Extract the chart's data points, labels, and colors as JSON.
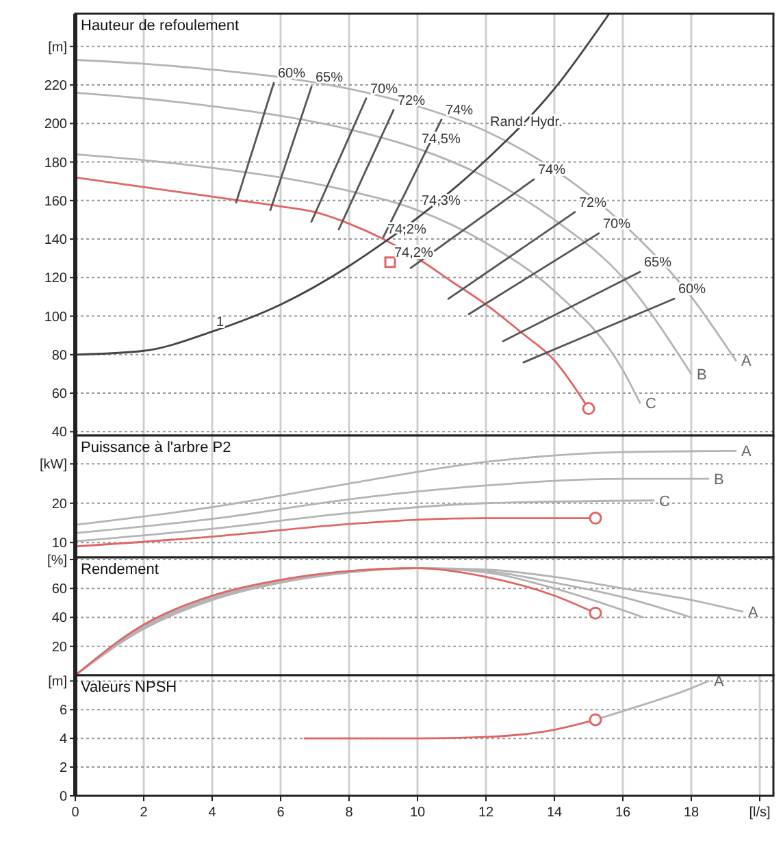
{
  "chart_data": [
    {
      "type": "line",
      "title": "Hauteur de refoulement",
      "xlim": [
        0,
        20.4
      ],
      "xticks": [
        0,
        2,
        4,
        6,
        8,
        10,
        12,
        14,
        16,
        18
      ],
      "ylim": [
        38,
        257
      ],
      "yticks": [
        40,
        60,
        80,
        100,
        120,
        140,
        160,
        180,
        200,
        220,
        {
          "value": 240,
          "label": "[m]"
        }
      ],
      "tick_labels": "y",
      "grid": true,
      "series": [
        {
          "name": "A",
          "color": "#b4b4b4",
          "x": [
            0,
            2,
            4,
            6,
            8,
            10,
            12,
            14,
            16,
            18,
            19.3
          ],
          "values": [
            233,
            231,
            228,
            224,
            218,
            209,
            196,
            176,
            148,
            110,
            77
          ]
        },
        {
          "name": "B",
          "color": "#b4b4b4",
          "x": [
            0,
            2,
            4,
            6,
            8,
            10,
            12,
            14,
            16,
            18
          ],
          "values": [
            216,
            213,
            209,
            204,
            197,
            187,
            172,
            150,
            120,
            70
          ]
        },
        {
          "name": "C",
          "color": "#b4b4b4",
          "x": [
            0,
            2,
            4,
            6,
            8,
            10,
            12,
            14,
            16,
            16.5
          ],
          "values": [
            184,
            181,
            177,
            172,
            165,
            155,
            138,
            113,
            72,
            55
          ]
        },
        {
          "color": "#e06666",
          "x": [
            0,
            2,
            4,
            6,
            7,
            8,
            9,
            10,
            11,
            12,
            13,
            14,
            15
          ],
          "values": [
            172,
            167,
            162,
            157,
            154,
            148,
            140,
            130,
            118,
            106,
            92,
            77,
            52
          ]
        },
        {
          "type": "scatter",
          "marker": "circle",
          "color": "#e06666",
          "x": [
            15
          ],
          "values": [
            52
          ]
        },
        {
          "type": "scatter",
          "marker": "square",
          "color": "#e06666",
          "x": [
            9.2
          ],
          "values": [
            128
          ]
        },
        {
          "color": "#444444",
          "x": [
            0,
            2,
            4,
            6,
            8,
            9,
            10,
            12,
            14,
            15.6
          ],
          "values": [
            80,
            82,
            92,
            106,
            126,
            138,
            151,
            181,
            218,
            257
          ]
        },
        {
          "color": "#555555",
          "x": [
            5.8,
            4.7
          ],
          "values": [
            221,
            159
          ]
        },
        {
          "color": "#555555",
          "x": [
            6.9,
            5.7
          ],
          "values": [
            219,
            155
          ]
        },
        {
          "color": "#555555",
          "x": [
            8.5,
            6.9
          ],
          "values": [
            213,
            149
          ]
        },
        {
          "color": "#555555",
          "x": [
            9.3,
            7.7
          ],
          "values": [
            207,
            145
          ]
        },
        {
          "color": "#555555",
          "x": [
            10.7,
            9.0
          ],
          "values": [
            202,
            141
          ]
        },
        {
          "color": "#555555",
          "x": [
            13.4,
            9.8
          ],
          "values": [
            171,
            125
          ]
        },
        {
          "color": "#555555",
          "x": [
            14.6,
            10.9
          ],
          "values": [
            154,
            109
          ]
        },
        {
          "color": "#555555",
          "x": [
            15.3,
            11.5
          ],
          "values": [
            143,
            101
          ]
        },
        {
          "color": "#555555",
          "x": [
            16.5,
            12.5
          ],
          "values": [
            123,
            87
          ]
        },
        {
          "color": "#555555",
          "x": [
            17.5,
            13.1
          ],
          "values": [
            109,
            76
          ]
        }
      ],
      "annotations": [
        {
          "text": "60%",
          "x": 5.8,
          "y": 221
        },
        {
          "text": "65%",
          "x": 6.9,
          "y": 219
        },
        {
          "text": "70%",
          "x": 8.5,
          "y": 213
        },
        {
          "text": "72%",
          "x": 9.3,
          "y": 207
        },
        {
          "text": "74%",
          "x": 10.7,
          "y": 202
        },
        {
          "text": "Rand. Hydr.",
          "x": 12,
          "y": 196
        },
        {
          "text": "74,5%",
          "x": 10,
          "y": 187
        },
        {
          "text": "74%",
          "x": 13.4,
          "y": 171
        },
        {
          "text": "74,3%",
          "x": 10,
          "y": 155
        },
        {
          "text": "72%",
          "x": 14.6,
          "y": 154
        },
        {
          "text": "70%",
          "x": 15.3,
          "y": 143
        },
        {
          "text": "74,2%",
          "x": 9,
          "y": 140
        },
        {
          "text": "65%",
          "x": 16.5,
          "y": 123
        },
        {
          "text": "74,2%",
          "x": 9.2,
          "y": 128
        },
        {
          "text": "60%",
          "x": 17.5,
          "y": 109
        },
        {
          "text": "1",
          "x": 4,
          "y": 92
        }
      ]
    },
    {
      "type": "line",
      "title": "Puissance à l'arbre P2",
      "xlim": [
        0,
        20.4
      ],
      "xticks": [
        0,
        2,
        4,
        6,
        8,
        10,
        12,
        14,
        16,
        18
      ],
      "ylim": [
        6.2,
        37.2
      ],
      "yticks": [
        10,
        20,
        {
          "value": 30,
          "label": "[kW]"
        }
      ],
      "tick_labels": "y",
      "grid": true,
      "series": [
        {
          "name": "A",
          "color": "#b4b4b4",
          "x": [
            0,
            4,
            8,
            12,
            16,
            19.3
          ],
          "values": [
            14.5,
            19,
            25,
            30.5,
            33,
            33.3
          ]
        },
        {
          "name": "B",
          "color": "#b4b4b4",
          "x": [
            0,
            4,
            8,
            12,
            16,
            18.5
          ],
          "values": [
            12.4,
            16,
            21,
            24.5,
            26.2,
            26.2
          ]
        },
        {
          "name": "C",
          "color": "#b4b4b4",
          "x": [
            0,
            4,
            8,
            12,
            16.9
          ],
          "values": [
            10.3,
            13.5,
            17.5,
            20,
            20.7
          ]
        },
        {
          "color": "#e06666",
          "x": [
            0,
            4,
            8,
            10,
            12,
            15.2
          ],
          "values": [
            9,
            11.5,
            14.7,
            15.8,
            16.2,
            16.2
          ]
        },
        {
          "type": "scatter",
          "marker": "circle",
          "color": "#e06666",
          "x": [
            15.2
          ],
          "values": [
            16.2
          ]
        }
      ]
    },
    {
      "type": "line",
      "title": "Rendement",
      "xlim": [
        0,
        20.4
      ],
      "xticks": [
        0,
        2,
        4,
        6,
        8,
        10,
        12,
        14,
        16,
        18
      ],
      "ylim": [
        0,
        81.4
      ],
      "yticks": [
        20,
        40,
        60,
        {
          "value": 80,
          "label": "[%]"
        }
      ],
      "tick_labels": "y",
      "grid": true,
      "series": [
        {
          "name": "A",
          "color": "#b4b4b4",
          "x": [
            0,
            2,
            4,
            6,
            8,
            10,
            12,
            14,
            16,
            18,
            19.5
          ],
          "values": [
            0,
            32,
            52,
            64,
            71,
            74,
            73,
            68,
            60,
            52,
            44
          ]
        },
        {
          "color": "#b4b4b4",
          "x": [
            0,
            2,
            4,
            6,
            8,
            10,
            12,
            14,
            16,
            18
          ],
          "values": [
            0,
            33,
            53,
            65,
            72,
            74,
            72,
            64,
            54,
            40
          ]
        },
        {
          "color": "#b4b4b4",
          "x": [
            0,
            2,
            4,
            6,
            8,
            10,
            12,
            14,
            16.6
          ],
          "values": [
            0,
            34,
            54,
            65,
            72,
            74,
            71,
            60,
            40
          ]
        },
        {
          "color": "#e06666",
          "x": [
            0,
            2,
            4,
            6,
            8,
            10,
            12,
            14,
            15.2
          ],
          "values": [
            0,
            35,
            55,
            66,
            72,
            74,
            68,
            55,
            43
          ]
        },
        {
          "type": "scatter",
          "marker": "circle",
          "color": "#e06666",
          "x": [
            15.2
          ],
          "values": [
            43
          ]
        }
      ]
    },
    {
      "type": "line",
      "title": "Valeurs NPSH",
      "xlim": [
        0,
        20.4
      ],
      "xticks": [
        0,
        2,
        4,
        6,
        8,
        10,
        12,
        14,
        16,
        18,
        {
          "value": 20,
          "label": "[l/s]"
        }
      ],
      "ylim": [
        0,
        8.4
      ],
      "yticks": [
        0,
        2,
        4,
        6,
        {
          "value": 8,
          "label": "[m]"
        }
      ],
      "grid": true,
      "series": [
        {
          "name": "A",
          "color": "#b4b4b4",
          "x": [
            15.2,
            16,
            18,
            18.5
          ],
          "values": [
            5.3,
            5.9,
            7.5,
            8
          ]
        },
        {
          "color": "#e06666",
          "x": [
            6.7,
            8,
            10,
            12,
            14,
            15.2
          ],
          "values": [
            4,
            4,
            4,
            4.1,
            4.6,
            5.3
          ]
        },
        {
          "type": "scatter",
          "marker": "circle",
          "color": "#e06666",
          "x": [
            15.2
          ],
          "values": [
            5.3
          ]
        }
      ]
    }
  ]
}
